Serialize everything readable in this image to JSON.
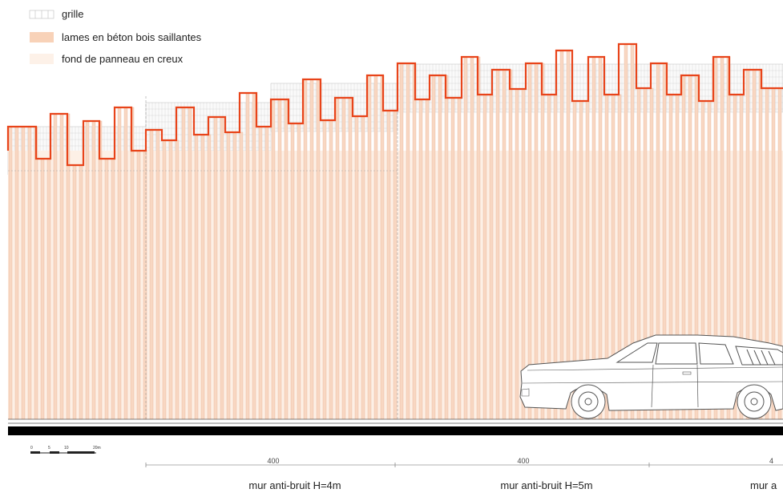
{
  "legend": {
    "items": [
      {
        "label": "grille",
        "swatch": "grille"
      },
      {
        "label": "lames en béton bois saillantes",
        "swatch": "lames"
      },
      {
        "label": "fond de panneau en creux",
        "swatch": "fond"
      }
    ]
  },
  "scale_bar": {
    "labels": [
      "0",
      "5",
      "10",
      "20m"
    ]
  },
  "dimensions": [
    {
      "value": "400",
      "label": "mur anti-bruit H=4m"
    },
    {
      "value": "400",
      "label": "mur anti-bruit H=5m"
    },
    {
      "value": "4",
      "label": "mur a"
    }
  ],
  "colors": {
    "lames_outline": "#e8441a",
    "lames_fill": "#f8d7c2",
    "fond_fill": "#fdf0e6",
    "grille_stroke": "#c8c8c8",
    "ground": "#000000"
  }
}
